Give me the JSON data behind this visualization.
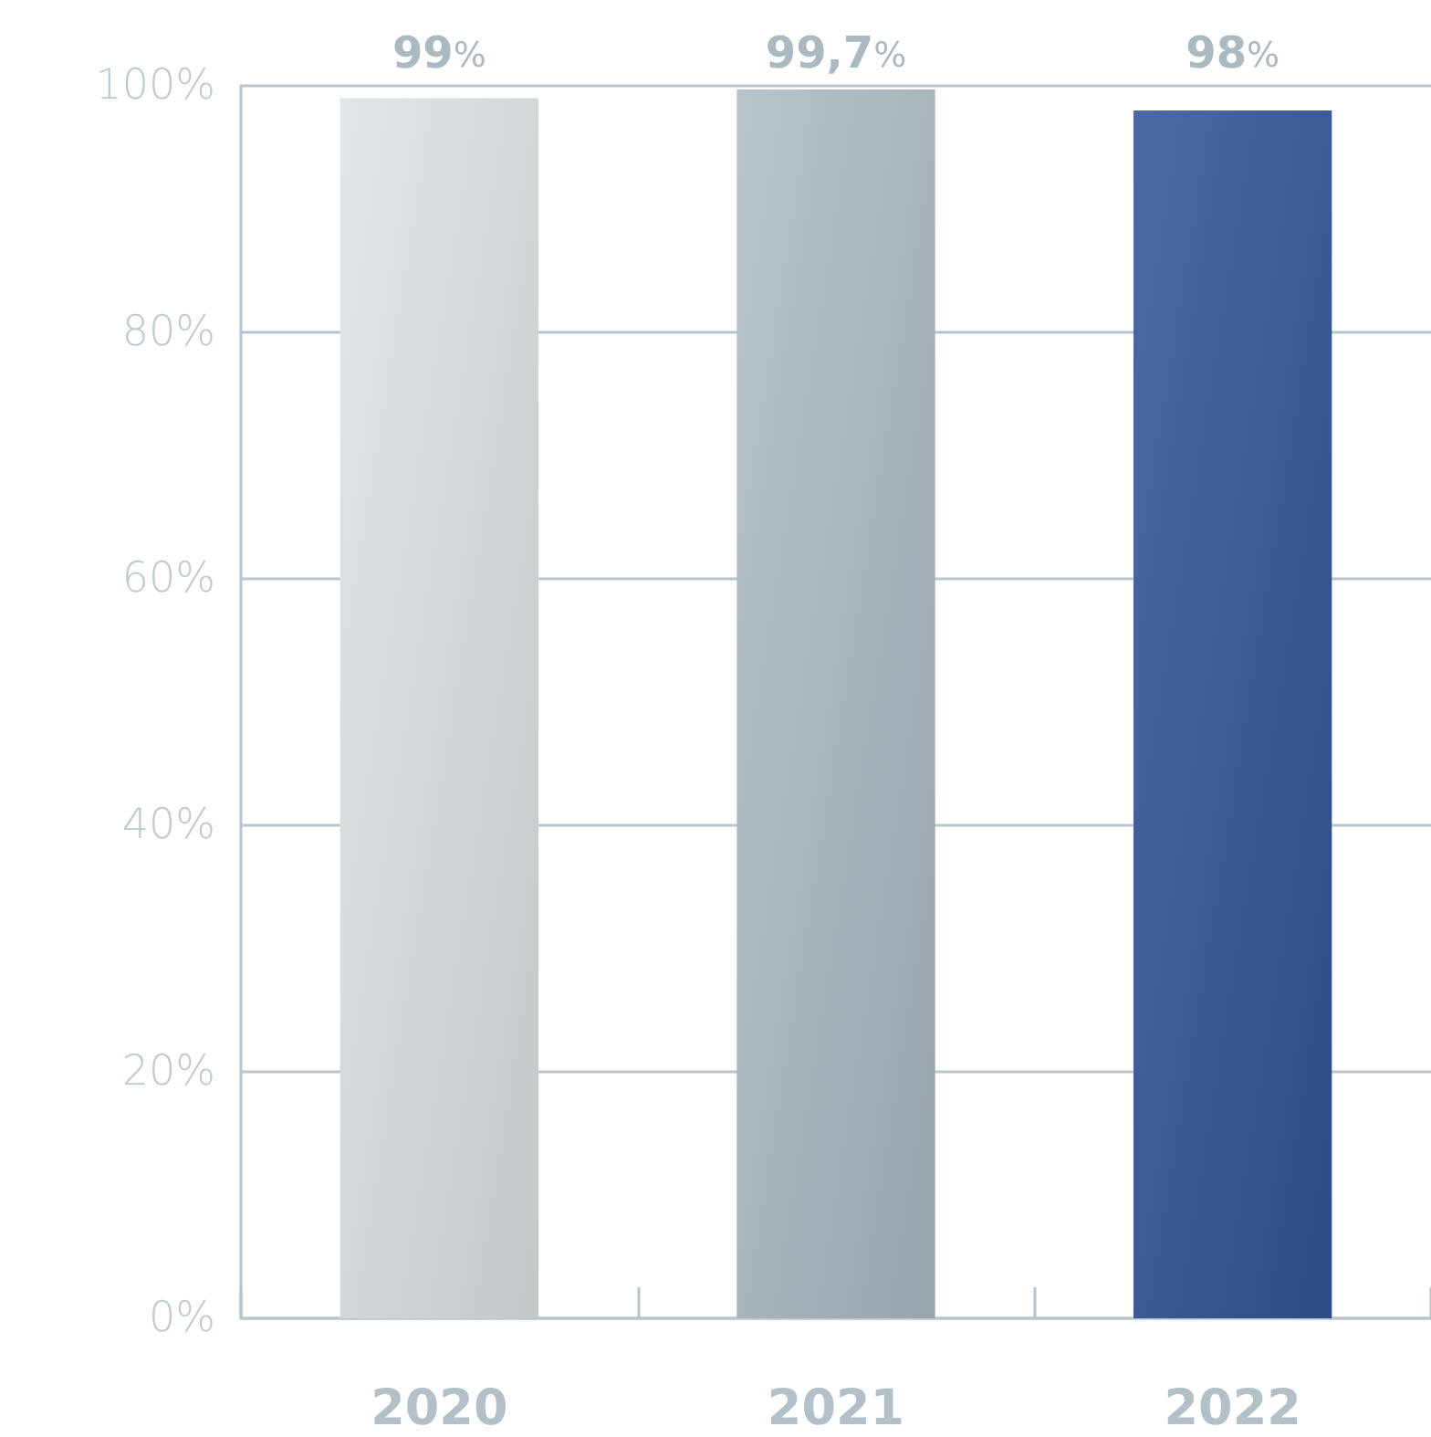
{
  "chart_data": {
    "type": "bar",
    "categories": [
      "2020",
      "2021",
      "2022"
    ],
    "values": [
      99,
      99.7,
      98
    ],
    "colors": [
      "#dee3e6",
      "#aebcc3",
      "#345598"
    ],
    "value_labels": [
      "99%",
      "99,7%",
      "98%"
    ],
    "ylim": [
      0,
      100
    ],
    "yticks": [
      {
        "value": 0,
        "label": "0%"
      },
      {
        "value": 20,
        "label": "20%"
      },
      {
        "value": 40,
        "label": "40%"
      },
      {
        "value": 60,
        "label": "60%"
      },
      {
        "value": 80,
        "label": "80%"
      },
      {
        "value": 100,
        "label": "100%"
      }
    ],
    "grid": "y"
  }
}
